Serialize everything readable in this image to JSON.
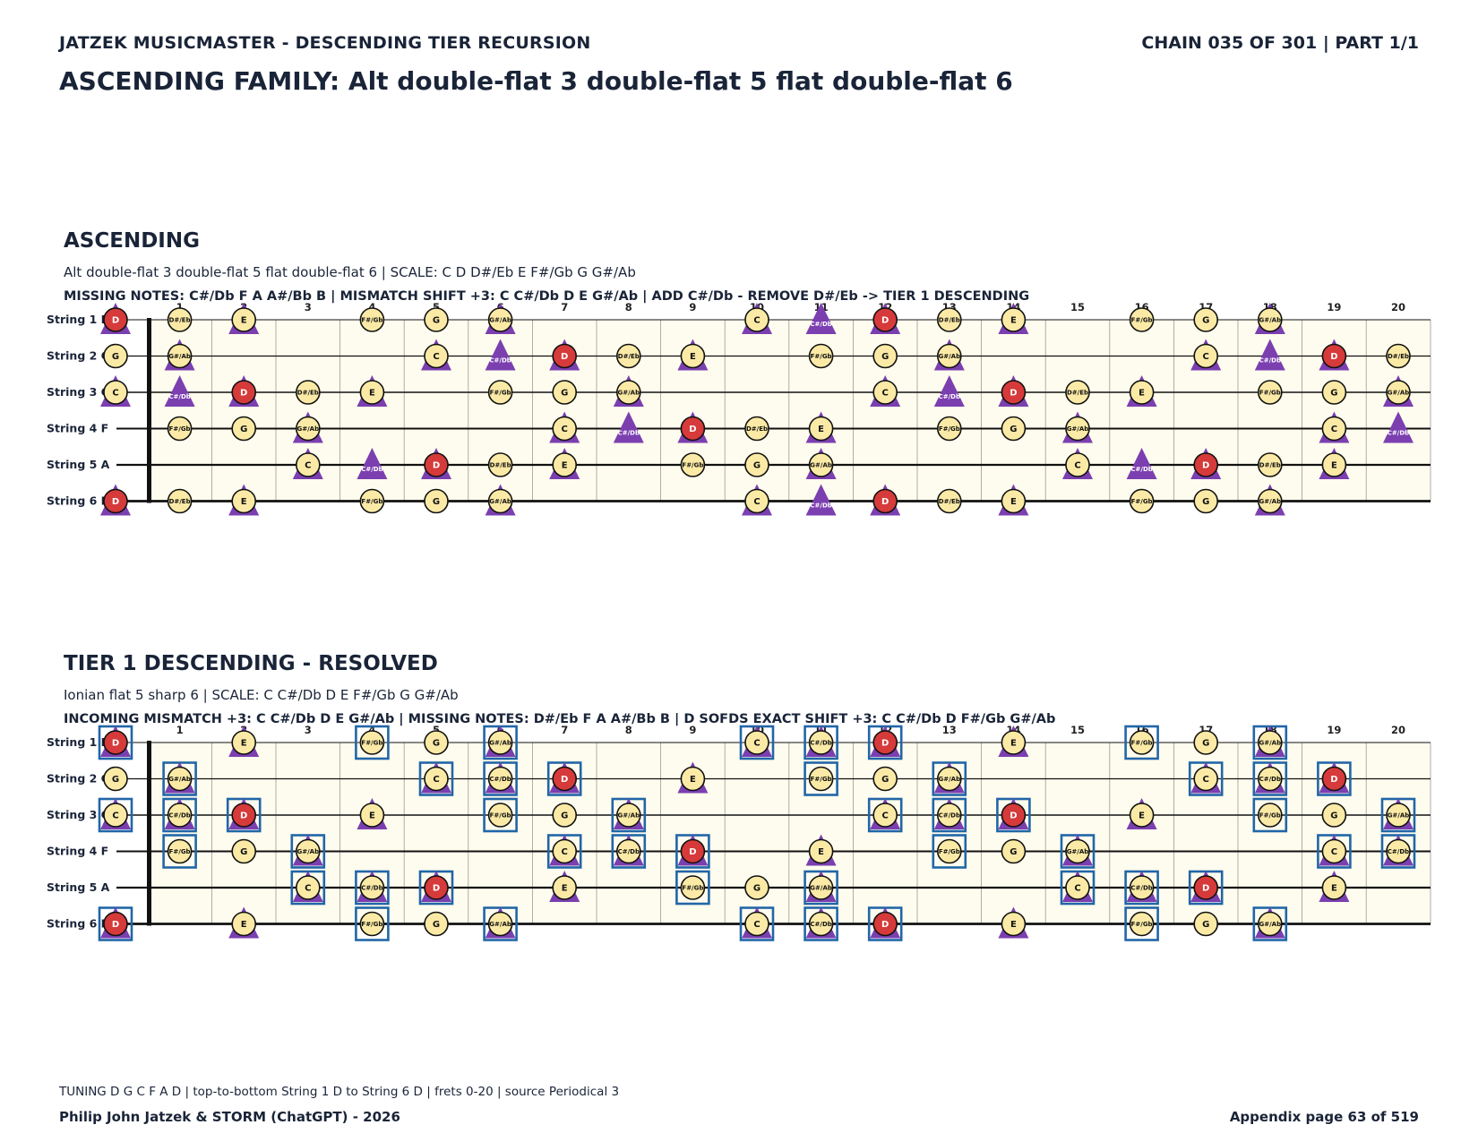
{
  "header": {
    "left": "JATZEK MUSICMASTER - DESCENDING TIER RECURSION",
    "right": "CHAIN 035 OF 301  |  PART 1/1"
  },
  "family_title": "ASCENDING FAMILY: Alt double-flat 3 double-flat 5 flat double-flat 6",
  "colors": {
    "board_fill": "#fefcee",
    "note_fill": "#fbeaa6",
    "root_fill": "#d63a3a",
    "triangle": "#7b3fb0",
    "box": "#2166a8",
    "ink": "#1a2438"
  },
  "legend_icons": [
    "note-circle",
    "root-circle",
    "triangle-marker",
    "box-marker"
  ],
  "string_labels": [
    "String 1 D",
    "String 2 G",
    "String 3 C",
    "String 4 F",
    "String 5 A",
    "String 6 D"
  ],
  "open_notes": [
    "D",
    "G",
    "C",
    "F",
    "A",
    "D"
  ],
  "fret_numbers": [
    "",
    "1",
    "2",
    "3",
    "4",
    "5",
    "6",
    "7",
    "8",
    "9",
    "10",
    "11",
    "12",
    "13",
    "14",
    "15",
    "16",
    "17",
    "18",
    "19",
    "20"
  ],
  "sections": [
    {
      "title": "ASCENDING",
      "subtitle": "Alt double-flat 3 double-flat 5 flat double-flat 6  |  SCALE: C D D#/Eb E F#/Gb G G#/Ab",
      "info": "MISSING NOTES: C#/Db F A A#/Bb B  |  MISMATCH SHIFT +3: C C#/Db D E G#/Ab  |  ADD C#/Db - REMOVE D#/Eb -> TIER 1 DESCENDING",
      "scale": [
        "C",
        "D",
        "D#/Eb",
        "E",
        "F#/Gb",
        "G",
        "G#/Ab"
      ],
      "root": "D",
      "triangles": [
        "C",
        "C#/Db",
        "D",
        "E",
        "G#/Ab"
      ],
      "boxes": []
    },
    {
      "title": "TIER 1 DESCENDING - RESOLVED",
      "subtitle": "Ionian flat 5 sharp 6  |  SCALE: C C#/Db D E F#/Gb G G#/Ab",
      "info": "INCOMING MISMATCH +3: C C#/Db D E G#/Ab  |  MISSING NOTES: D#/Eb F A A#/Bb B  |  D SOFDS EXACT SHIFT +3: C C#/Db D F#/Gb G#/Ab",
      "scale": [
        "C",
        "C#/Db",
        "D",
        "E",
        "F#/Gb",
        "G",
        "G#/Ab"
      ],
      "root": "D",
      "triangles": [
        "C",
        "C#/Db",
        "D",
        "E",
        "G#/Ab"
      ],
      "boxes": [
        "C",
        "C#/Db",
        "D",
        "F#/Gb",
        "G#/Ab"
      ]
    }
  ],
  "footer": {
    "note": "TUNING D G C F A D | top-to-bottom String 1 D to String 6 D | frets 0-20 | source Periodical 3",
    "left": "Philip John Jatzek & STORM (ChatGPT) - 2026",
    "right": "Appendix page 63 of 519"
  }
}
